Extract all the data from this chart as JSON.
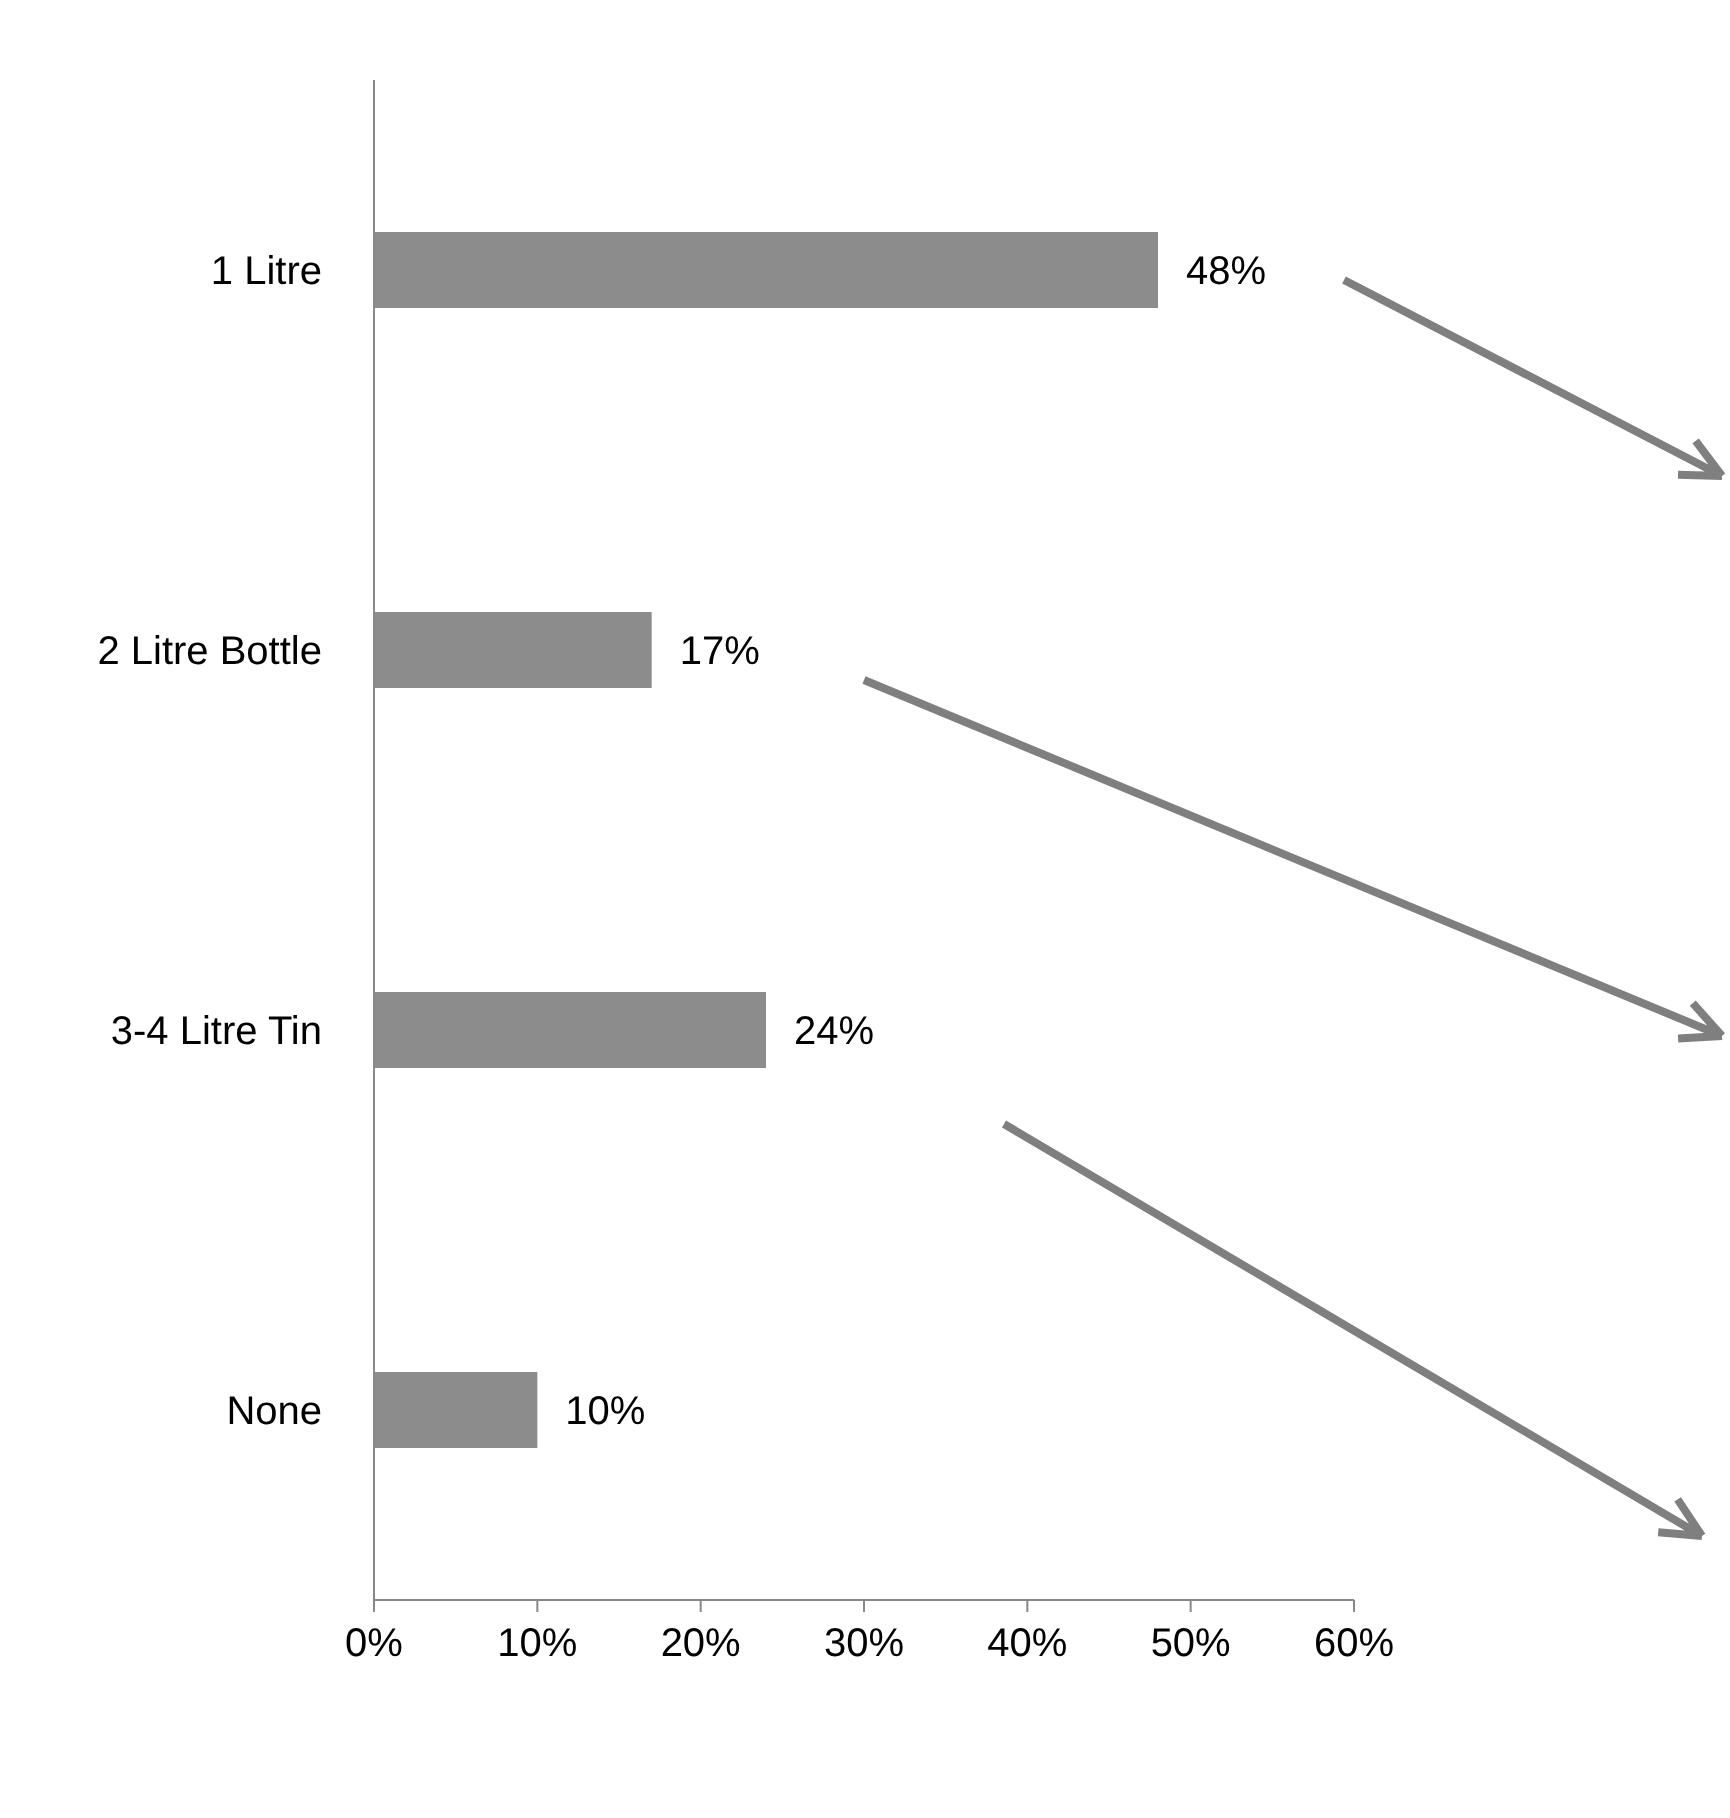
{
  "chart_data": {
    "type": "bar",
    "orientation": "horizontal",
    "categories": [
      "1 Litre",
      "2 Litre Bottle",
      "3-4 Litre Tin",
      "None"
    ],
    "values": [
      48,
      17,
      24,
      10
    ],
    "value_labels": [
      "48%",
      "17%",
      "24%",
      "10%"
    ],
    "color": "#8c8c8c",
    "xlim": [
      0,
      60
    ],
    "xticks": [
      {
        "value": 0,
        "label": "0%"
      },
      {
        "value": 10,
        "label": "10%"
      },
      {
        "value": 20,
        "label": "20%"
      },
      {
        "value": 30,
        "label": "30%"
      },
      {
        "value": 40,
        "label": "40%"
      },
      {
        "value": 50,
        "label": "50%"
      },
      {
        "value": 60,
        "label": "60%"
      }
    ],
    "grid": false
  }
}
